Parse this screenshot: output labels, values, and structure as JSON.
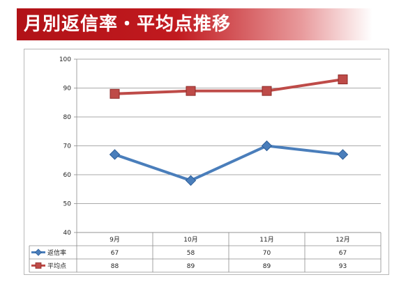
{
  "title": "月別返信率・平均点推移",
  "chart_data": {
    "type": "line",
    "categories": [
      "9月",
      "10月",
      "11月",
      "12月"
    ],
    "ylim": [
      40,
      100
    ],
    "yticks": [
      40,
      50,
      60,
      70,
      80,
      90,
      100
    ],
    "grid": true,
    "legend": "data-table",
    "series": [
      {
        "name": "返信率",
        "values": [
          67,
          58,
          70,
          67
        ],
        "color": "#4a7ebb",
        "marker": "diamond"
      },
      {
        "name": "平均点",
        "values": [
          88,
          89,
          89,
          93
        ],
        "color": "#be4b48",
        "marker": "square"
      }
    ]
  }
}
